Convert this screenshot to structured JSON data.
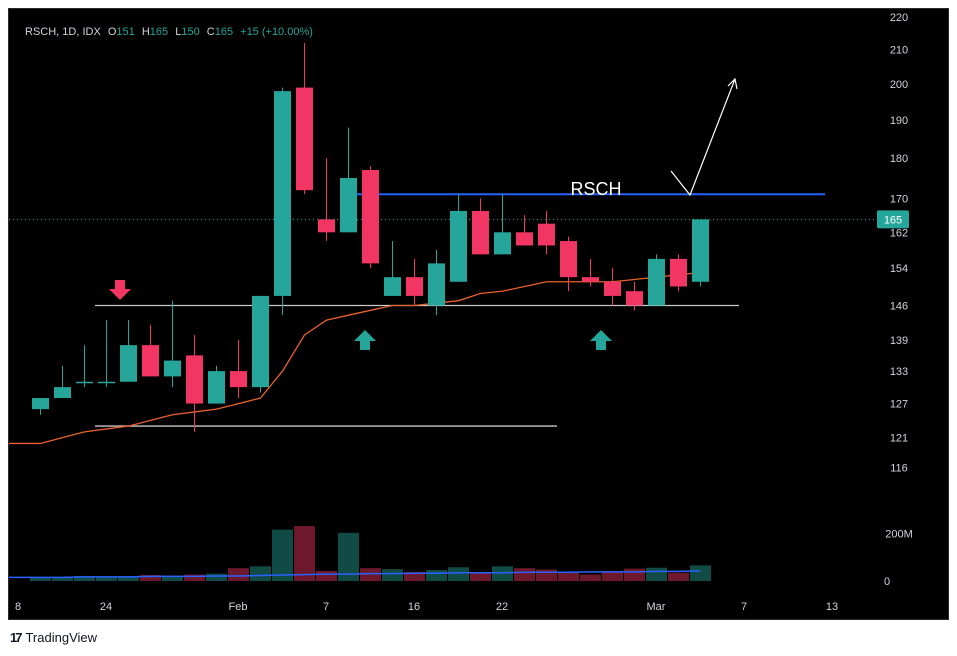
{
  "header": {
    "symbol": "RSCH, 1D, IDX",
    "o_label": "O",
    "o_value": "151",
    "h_label": "H",
    "h_value": "165",
    "l_label": "L",
    "l_value": "150",
    "c_label": "C",
    "c_value": "165",
    "change": "+15 (+10.00%)"
  },
  "footer": {
    "brand": "TradingView",
    "brand_icon": "tradingview-logo-icon"
  },
  "colors": {
    "up": "#26a69a",
    "down": "#f23663",
    "ma": "#e8612c",
    "vol_ma": "#2962ff",
    "resistance": "#2962ff",
    "support": "#c8c8c8",
    "grid_text": "#d1d4dc"
  },
  "chart_data": {
    "type": "candlestick",
    "y_axis_ticks": [
      220,
      210,
      200,
      190,
      180,
      170,
      162,
      154,
      146,
      139,
      133,
      127,
      121,
      116
    ],
    "y_scale": "log",
    "ylim": [
      112,
      220
    ],
    "x_axis_ticks": [
      {
        "label": "8",
        "i": -1
      },
      {
        "label": "24",
        "i": 3
      },
      {
        "label": "Feb",
        "i": 9
      },
      {
        "label": "7",
        "i": 13
      },
      {
        "label": "16",
        "i": 17
      },
      {
        "label": "22",
        "i": 21
      },
      {
        "label": "Mar",
        "i": 28
      },
      {
        "label": "7",
        "i": 32
      },
      {
        "label": "13",
        "i": 36
      }
    ],
    "last_price_label": "165",
    "annotation_text": "RSCH",
    "candles": [
      {
        "o": 126,
        "h": 128,
        "l": 125,
        "c": 128,
        "v": 8
      },
      {
        "o": 128,
        "h": 134,
        "l": 128,
        "c": 130,
        "v": 9
      },
      {
        "o": 131,
        "h": 138,
        "l": 130,
        "c": 131,
        "v": 11
      },
      {
        "o": 131,
        "h": 143,
        "l": 130,
        "c": 131,
        "v": 10
      },
      {
        "o": 131,
        "h": 143,
        "l": 131,
        "c": 138,
        "v": 9
      },
      {
        "o": 138,
        "h": 142,
        "l": 132,
        "c": 132,
        "v": 13
      },
      {
        "o": 132,
        "h": 147,
        "l": 130,
        "c": 135,
        "v": 12
      },
      {
        "o": 136,
        "h": 140,
        "l": 122,
        "c": 127,
        "v": 14
      },
      {
        "o": 127,
        "h": 134,
        "l": 127,
        "c": 133,
        "v": 16
      },
      {
        "o": 133,
        "h": 139,
        "l": 128,
        "c": 130,
        "v": 28
      },
      {
        "o": 130,
        "h": 148,
        "l": 129,
        "c": 148,
        "v": 32
      },
      {
        "o": 148,
        "h": 199,
        "l": 144,
        "c": 198,
        "v": 112
      },
      {
        "o": 199,
        "h": 212,
        "l": 171,
        "c": 172,
        "v": 120
      },
      {
        "o": 165,
        "h": 180,
        "l": 160,
        "c": 162,
        "v": 22
      },
      {
        "o": 162,
        "h": 188,
        "l": 162,
        "c": 175,
        "v": 105
      },
      {
        "o": 177,
        "h": 178,
        "l": 154,
        "c": 155,
        "v": 28
      },
      {
        "o": 148,
        "h": 160,
        "l": 148,
        "c": 152,
        "v": 26
      },
      {
        "o": 152,
        "h": 156,
        "l": 146,
        "c": 148,
        "v": 20
      },
      {
        "o": 146,
        "h": 158,
        "l": 144,
        "c": 155,
        "v": 24
      },
      {
        "o": 151,
        "h": 171,
        "l": 151,
        "c": 167,
        "v": 30
      },
      {
        "o": 167,
        "h": 170,
        "l": 157,
        "c": 157,
        "v": 18
      },
      {
        "o": 157,
        "h": 171,
        "l": 157,
        "c": 162,
        "v": 32
      },
      {
        "o": 162,
        "h": 166,
        "l": 159,
        "c": 159,
        "v": 28
      },
      {
        "o": 164,
        "h": 167,
        "l": 157,
        "c": 159,
        "v": 25
      },
      {
        "o": 160,
        "h": 161,
        "l": 149,
        "c": 152,
        "v": 20
      },
      {
        "o": 152,
        "h": 156,
        "l": 150,
        "c": 151,
        "v": 14
      },
      {
        "o": 151,
        "h": 154,
        "l": 146,
        "c": 148,
        "v": 22
      },
      {
        "o": 149,
        "h": 151,
        "l": 145,
        "c": 146,
        "v": 27
      },
      {
        "o": 146,
        "h": 157,
        "l": 146,
        "c": 156,
        "v": 29
      },
      {
        "o": 156,
        "h": 157,
        "l": 149,
        "c": 150,
        "v": 18
      },
      {
        "o": 151,
        "h": 165,
        "l": 150,
        "c": 165,
        "v": 34
      }
    ],
    "moving_average": [
      120,
      121,
      122,
      122.5,
      123,
      124,
      125,
      125.5,
      126,
      127,
      128,
      133,
      140,
      143,
      144,
      145,
      146,
      146,
      146.5,
      147,
      148.5,
      149,
      150,
      151,
      151,
      151,
      151,
      151.5,
      152,
      152.5,
      153
    ],
    "volume_scale": {
      "tick_labels": [
        "200M",
        "0"
      ]
    },
    "volume_ma": [
      8,
      8,
      9,
      9,
      9,
      10,
      10,
      10,
      11,
      11,
      12,
      13,
      14,
      15,
      15,
      16,
      16,
      17,
      17,
      18,
      18,
      18,
      19,
      19,
      19,
      20,
      20,
      20,
      21,
      21,
      22
    ],
    "resistance_level": 171,
    "support_level": 146,
    "lower_support_level": 123
  }
}
